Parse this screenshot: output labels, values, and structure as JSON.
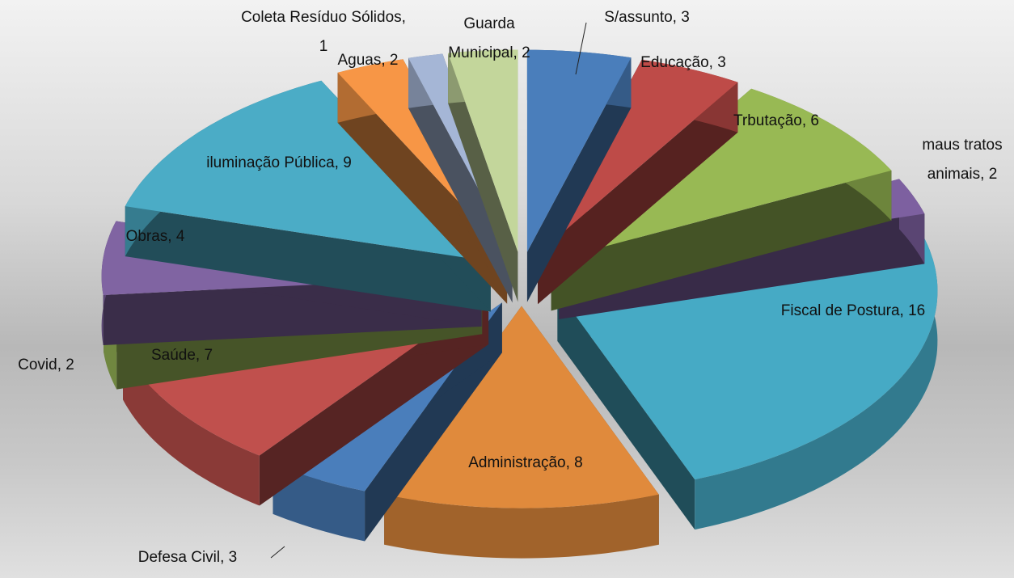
{
  "chart_data": {
    "type": "pie",
    "values": [
      3,
      3,
      6,
      2,
      16,
      8,
      3,
      7,
      2,
      4,
      9,
      2,
      1,
      2
    ],
    "value_labels": [
      "S/assunto, 3",
      "Educação, 3",
      "Trbutação, 6",
      "maus tratos\nanimais, 2",
      "Fiscal de Postura, 16",
      "Administração, 8",
      "Defesa Civil, 3",
      "Saúde, 7",
      "Covid, 2",
      "Obras, 4",
      "iluminação Pública, 9",
      "Aguas, 2",
      "Coleta Resíduo Sólidos,\n1",
      "Guarda\nMunicipal, 2"
    ],
    "colors": [
      "#4a7ebb",
      "#be4b48",
      "#98b954",
      "#7d60a0",
      "#46aac5",
      "#e08a3c",
      "#4a7ebb",
      "#c0504d",
      "#9bbb59",
      "#8064a2",
      "#4bacc6",
      "#f79646",
      "#a5b6d6",
      "#c3d69b"
    ]
  }
}
